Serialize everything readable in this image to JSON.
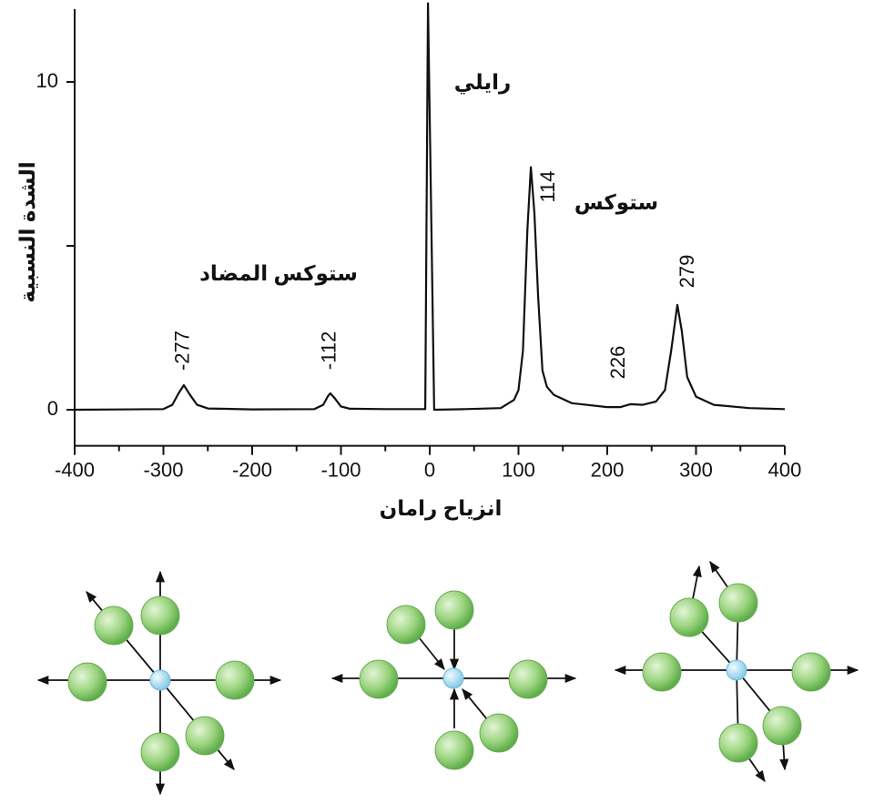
{
  "chart_data": {
    "type": "line",
    "ylabel": "الشدة النسبية",
    "xlabel": "انزياح رامان",
    "annotations": [
      "رايلي",
      "ستوكس",
      "ستوكس المضاد"
    ],
    "peak_labels": [
      -277,
      -112,
      114,
      226,
      279
    ],
    "x": [
      -400,
      -300,
      -290,
      -283,
      -277,
      -270,
      -262,
      -250,
      -200,
      -130,
      -120,
      -115,
      -112,
      -107,
      -100,
      -90,
      -50,
      -5,
      -2,
      5,
      40,
      80,
      95,
      100,
      105,
      110,
      114,
      118,
      122,
      127,
      132,
      140,
      160,
      200,
      215,
      226,
      240,
      255,
      265,
      272,
      279,
      284,
      290,
      300,
      320,
      360,
      400
    ],
    "series": [
      {
        "color": "#111111",
        "values": [
          0,
          0.02,
          0.15,
          0.5,
          0.75,
          0.45,
          0.15,
          0.04,
          0.01,
          0.02,
          0.15,
          0.4,
          0.5,
          0.35,
          0.1,
          0.03,
          0.02,
          0.02,
          12.4,
          0,
          0.02,
          0.05,
          0.3,
          0.6,
          1.8,
          5.5,
          7.4,
          6.0,
          3.5,
          1.2,
          0.7,
          0.45,
          0.2,
          0.08,
          0.08,
          0.17,
          0.15,
          0.25,
          0.6,
          1.8,
          3.2,
          2.4,
          1.0,
          0.4,
          0.15,
          0.05,
          0.02
        ]
      }
    ],
    "xlim": [
      -400,
      400
    ],
    "xticks": [
      -400,
      -300,
      -200,
      -100,
      0,
      100,
      200,
      300,
      400
    ],
    "xminor_ticks": [
      -350,
      -250,
      -150,
      -50,
      50,
      150,
      250,
      350
    ],
    "ylim": [
      -1.1,
      12.5
    ],
    "yticks": [
      0,
      10
    ],
    "yminor_ticks": [
      5
    ]
  }
}
